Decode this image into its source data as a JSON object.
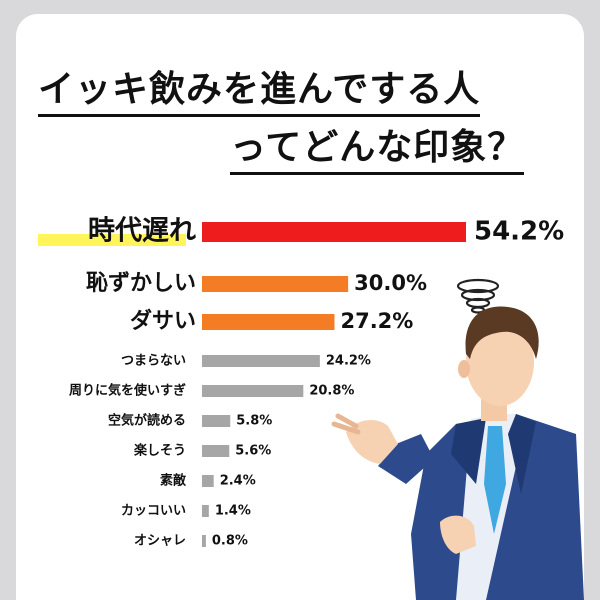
{
  "title_line1": "イッキ飲みを進んでする人",
  "title_line2": "ってどんな印象？",
  "colors": {
    "top": "#ee1c1c",
    "second": "#f47c24",
    "rest": "#a6a6a6",
    "highlight": "#fff45a"
  },
  "chart_data": {
    "type": "bar",
    "orientation": "horizontal",
    "title": "イッキ飲みを進んでする人ってどんな印象？",
    "xlim": [
      0,
      54.2
    ],
    "unit": "%",
    "grid": false,
    "categories": [
      "時代遅れ",
      "恥ずかしい",
      "ダサい",
      "つまらない",
      "周りに気を使いすぎ",
      "空気が読める",
      "楽しそう",
      "素敵",
      "カッコいい",
      "オシャレ"
    ],
    "values": [
      54.2,
      30.0,
      27.2,
      24.2,
      20.8,
      5.8,
      5.6,
      2.4,
      1.4,
      0.8
    ],
    "value_labels": [
      "54.2%",
      "30.0%",
      "27.2%",
      "24.2%",
      "20.8%",
      "5.8%",
      "5.6%",
      "2.4%",
      "1.4%",
      "0.8%"
    ]
  }
}
